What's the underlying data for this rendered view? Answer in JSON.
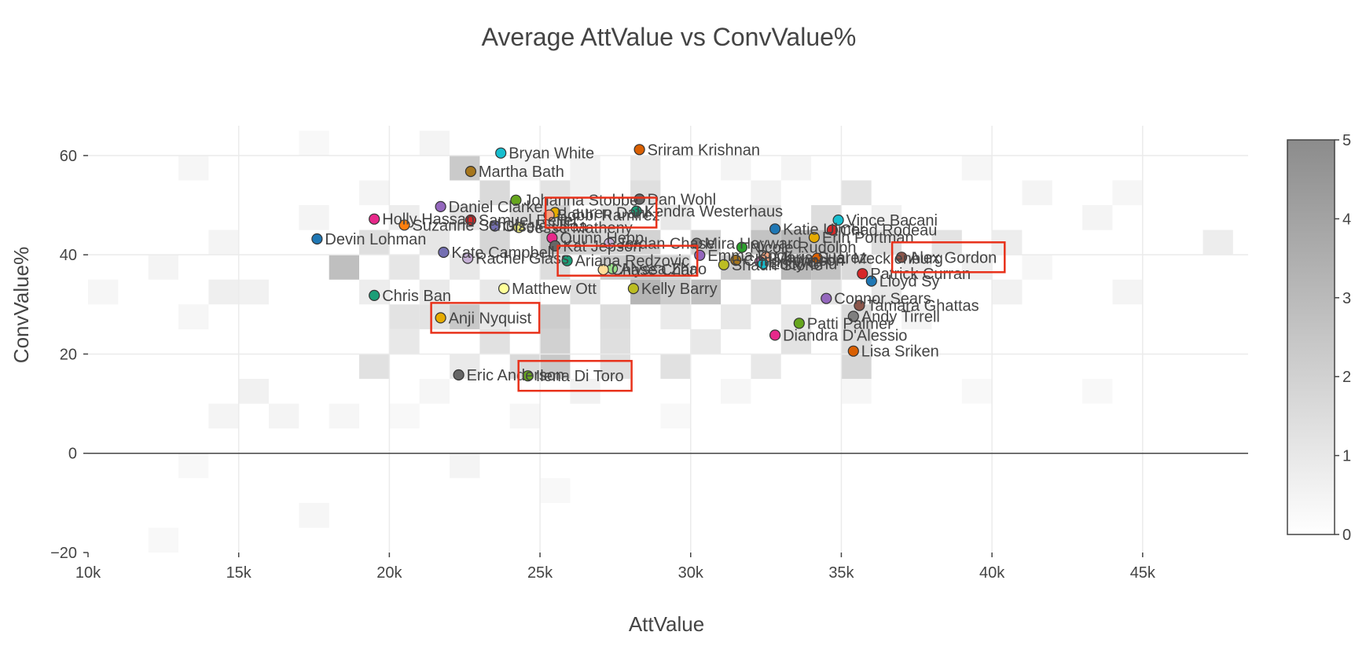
{
  "chart_data": {
    "type": "scatter",
    "title": "Average AttValue vs ConvValue%",
    "xlabel": "AttValue",
    "ylabel": "ConvValue%",
    "xlim": [
      10000,
      48500
    ],
    "ylim": [
      -20,
      66
    ],
    "x_ticks": [
      {
        "value": 10000,
        "label": "10k"
      },
      {
        "value": 15000,
        "label": "15k"
      },
      {
        "value": 20000,
        "label": "20k"
      },
      {
        "value": 25000,
        "label": "25k"
      },
      {
        "value": 30000,
        "label": "30k"
      },
      {
        "value": 35000,
        "label": "35k"
      },
      {
        "value": 40000,
        "label": "40k"
      },
      {
        "value": 45000,
        "label": "45k"
      }
    ],
    "y_ticks": [
      {
        "value": 60,
        "label": "60"
      },
      {
        "value": 40,
        "label": "40"
      },
      {
        "value": 20,
        "label": "20"
      },
      {
        "value": 0,
        "label": "0"
      },
      {
        "value": -20,
        "label": "−20"
      }
    ],
    "colorbar": {
      "min": 0,
      "max": 5,
      "ticks": [
        "0",
        "1",
        "2",
        "3",
        "4",
        "5"
      ],
      "low_color": "#ffffff",
      "high_color": "#8c8c8c"
    },
    "heatmap": {
      "x_start": 10000,
      "x_bin": 1000,
      "y_start": -20,
      "y_bin": 5,
      "cells": [
        [
          12,
          -20,
          0.3
        ],
        [
          17,
          -15,
          0.4
        ],
        [
          13,
          -5,
          0.3
        ],
        [
          22,
          -5,
          0.5
        ],
        [
          25,
          -10,
          0.3
        ],
        [
          14,
          5,
          0.5
        ],
        [
          16,
          5,
          0.5
        ],
        [
          18,
          5,
          0.4
        ],
        [
          20,
          5,
          0.3
        ],
        [
          24,
          5,
          0.4
        ],
        [
          29,
          5,
          0.3
        ],
        [
          15,
          10,
          0.6
        ],
        [
          21,
          10,
          0.4
        ],
        [
          26,
          10,
          0.6
        ],
        [
          31,
          10,
          0.4
        ],
        [
          35,
          10,
          0.4
        ],
        [
          39,
          10,
          0.3
        ],
        [
          43,
          10,
          0.3
        ],
        [
          19,
          15,
          1.3
        ],
        [
          22,
          15,
          0.9
        ],
        [
          24,
          15,
          1.6
        ],
        [
          25,
          15,
          2.4
        ],
        [
          27,
          15,
          1.4
        ],
        [
          29,
          15,
          1.3
        ],
        [
          32,
          15,
          1.0
        ],
        [
          35,
          15,
          1.8
        ],
        [
          20,
          20,
          1.0
        ],
        [
          23,
          20,
          1.3
        ],
        [
          25,
          20,
          2.0
        ],
        [
          27,
          20,
          1.4
        ],
        [
          30,
          20,
          1.0
        ],
        [
          33,
          20,
          1.2
        ],
        [
          35,
          20,
          1.5
        ],
        [
          13,
          25,
          0.4
        ],
        [
          20,
          25,
          1.2
        ],
        [
          21,
          25,
          1.2
        ],
        [
          22,
          25,
          2.4
        ],
        [
          23,
          25,
          1.0
        ],
        [
          25,
          25,
          2.2
        ],
        [
          27,
          25,
          1.5
        ],
        [
          29,
          25,
          0.9
        ],
        [
          31,
          25,
          1.0
        ],
        [
          33,
          25,
          1.0
        ],
        [
          35,
          25,
          1.6
        ],
        [
          37,
          25,
          0.5
        ],
        [
          10,
          30,
          0.4
        ],
        [
          14,
          30,
          0.7
        ],
        [
          15,
          30,
          0.6
        ],
        [
          19,
          30,
          0.8
        ],
        [
          21,
          30,
          0.9
        ],
        [
          23,
          30,
          1.0
        ],
        [
          26,
          30,
          1.4
        ],
        [
          28,
          30,
          3.2
        ],
        [
          29,
          30,
          2.2
        ],
        [
          30,
          30,
          2.8
        ],
        [
          32,
          30,
          1.5
        ],
        [
          34,
          30,
          1.2
        ],
        [
          36,
          30,
          1.0
        ],
        [
          40,
          30,
          0.6
        ],
        [
          44,
          30,
          0.5
        ],
        [
          12,
          35,
          0.5
        ],
        [
          18,
          35,
          2.8
        ],
        [
          20,
          35,
          1.1
        ],
        [
          22,
          35,
          1.0
        ],
        [
          25,
          35,
          1.5
        ],
        [
          27,
          35,
          2.2
        ],
        [
          28,
          35,
          2.4
        ],
        [
          29,
          35,
          1.8
        ],
        [
          31,
          35,
          2.2
        ],
        [
          33,
          35,
          3.0
        ],
        [
          34,
          35,
          2.6
        ],
        [
          35,
          35,
          1.6
        ],
        [
          37,
          35,
          0.9
        ],
        [
          39,
          35,
          0.7
        ],
        [
          41,
          35,
          0.4
        ],
        [
          14,
          40,
          0.5
        ],
        [
          19,
          40,
          1.4
        ],
        [
          21,
          40,
          1.1
        ],
        [
          23,
          40,
          1.8
        ],
        [
          25,
          40,
          2.6
        ],
        [
          26,
          40,
          2.0
        ],
        [
          27,
          40,
          1.8
        ],
        [
          28,
          40,
          1.9
        ],
        [
          30,
          40,
          2.0
        ],
        [
          32,
          40,
          2.6
        ],
        [
          33,
          40,
          3.1
        ],
        [
          34,
          40,
          2.8
        ],
        [
          36,
          40,
          1.5
        ],
        [
          38,
          40,
          1.2
        ],
        [
          40,
          40,
          0.8
        ],
        [
          47,
          40,
          0.8
        ],
        [
          17,
          45,
          0.5
        ],
        [
          20,
          45,
          0.8
        ],
        [
          22,
          45,
          1.2
        ],
        [
          24,
          45,
          1.6
        ],
        [
          25,
          45,
          2.0
        ],
        [
          27,
          45,
          1.2
        ],
        [
          29,
          45,
          1.0
        ],
        [
          32,
          45,
          1.4
        ],
        [
          34,
          45,
          1.5
        ],
        [
          36,
          45,
          0.6
        ],
        [
          43,
          45,
          0.5
        ],
        [
          19,
          50,
          0.5
        ],
        [
          23,
          50,
          1.6
        ],
        [
          25,
          50,
          1.2
        ],
        [
          26,
          50,
          0.6
        ],
        [
          28,
          50,
          1.4
        ],
        [
          32,
          50,
          0.6
        ],
        [
          35,
          50,
          1.2
        ],
        [
          41,
          50,
          0.5
        ],
        [
          44,
          50,
          0.4
        ],
        [
          13,
          55,
          0.4
        ],
        [
          22,
          55,
          2.3
        ],
        [
          24,
          55,
          0.4
        ],
        [
          26,
          55,
          0.6
        ],
        [
          28,
          55,
          1.0
        ],
        [
          31,
          55,
          0.5
        ],
        [
          33,
          55,
          0.5
        ],
        [
          39,
          55,
          0.4
        ],
        [
          17,
          60,
          0.3
        ],
        [
          21,
          60,
          0.5
        ]
      ]
    },
    "points": [
      {
        "name": "Bryan White",
        "x": 23700,
        "y": 60.5,
        "color": "#17becf"
      },
      {
        "name": "Sriram Krishnan",
        "x": 28300,
        "y": 61.2,
        "color": "#d95f02"
      },
      {
        "name": "Martha Bath",
        "x": 22700,
        "y": 56.8,
        "color": "#a6761d"
      },
      {
        "name": "Johanna Stobbe",
        "x": 24200,
        "y": 51.0,
        "color": "#66a61e"
      },
      {
        "name": "Dan Wohl",
        "x": 28300,
        "y": 51.2,
        "color": "#666666"
      },
      {
        "name": "Daniel Clarke",
        "x": 21700,
        "y": 49.7,
        "color": "#9467bd"
      },
      {
        "name": "Lauren Dahl",
        "x": 25500,
        "y": 48.5,
        "color": "#e6ab02"
      },
      {
        "name": "Bobbi Ramirez",
        "x": 25300,
        "y": 48.0,
        "color": "#f4a582"
      },
      {
        "name": "Kendra Westerhaus",
        "x": 28200,
        "y": 48.8,
        "color": "#1b9e77"
      },
      {
        "name": "Holly Hassan",
        "x": 19500,
        "y": 47.2,
        "color": "#e7298a"
      },
      {
        "name": "Samuel Reiter",
        "x": 22700,
        "y": 47.0,
        "color": "#d62728"
      },
      {
        "name": "Suzanne Schulz",
        "x": 20500,
        "y": 46.0,
        "color": "#ff7f0e"
      },
      {
        "name": "Gisele Ulloa",
        "x": 23500,
        "y": 45.8,
        "color": "#7570b3"
      },
      {
        "name": "Jesse Matheny",
        "x": 24300,
        "y": 45.5,
        "color": "#e6e67a"
      },
      {
        "name": "Vince Bacani",
        "x": 34900,
        "y": 47.0,
        "color": "#17becf"
      },
      {
        "name": "Katie Ulmer",
        "x": 32800,
        "y": 45.2,
        "color": "#1f77b4"
      },
      {
        "name": "Chad Rodeau",
        "x": 34700,
        "y": 45.0,
        "color": "#d62728"
      },
      {
        "name": "Devin Lohman",
        "x": 17600,
        "y": 43.2,
        "color": "#1f77b4"
      },
      {
        "name": "Quinn Hepp",
        "x": 25400,
        "y": 43.4,
        "color": "#e7298a"
      },
      {
        "name": "Jordan Chase",
        "x": 27300,
        "y": 42.3,
        "color": "#c5b0d5"
      },
      {
        "name": "Mira Hayward",
        "x": 30200,
        "y": 42.3,
        "color": "#7f7f7f"
      },
      {
        "name": "Erin Portman",
        "x": 34100,
        "y": 43.5,
        "color": "#e6ab02"
      },
      {
        "name": "Kat Jepson",
        "x": 25500,
        "y": 41.8,
        "color": "#666666"
      },
      {
        "name": "Nicole Rudolph",
        "x": 31700,
        "y": 41.5,
        "color": "#2ca02c"
      },
      {
        "name": "Kate Campbell",
        "x": 21800,
        "y": 40.5,
        "color": "#7570b3"
      },
      {
        "name": "Emma Bock",
        "x": 30300,
        "y": 39.9,
        "color": "#9467bd"
      },
      {
        "name": "Rachel Glass",
        "x": 22600,
        "y": 39.3,
        "color": "#c5b0d5"
      },
      {
        "name": "Ariana Redzovic",
        "x": 25900,
        "y": 38.8,
        "color": "#1b9e77"
      },
      {
        "name": "Chris Johnson",
        "x": 31500,
        "y": 38.9,
        "color": "#a6761d"
      },
      {
        "name": "Maria Suarez",
        "x": 32500,
        "y": 39.5,
        "color": "#f4a582"
      },
      {
        "name": "Hal Mecklenburg",
        "x": 34200,
        "y": 39.3,
        "color": "#d95f02"
      },
      {
        "name": "Lin Wu",
        "x": 32300,
        "y": 38.6,
        "color": "#e377c2"
      },
      {
        "name": "Alex Gordon",
        "x": 37000,
        "y": 39.5,
        "color": "#8c564b"
      },
      {
        "name": "Shaun Stone",
        "x": 31100,
        "y": 38.0,
        "color": "#bcbd22"
      },
      {
        "name": "Lucy Chu",
        "x": 32400,
        "y": 38.2,
        "color": "#17becf"
      },
      {
        "name": "Alyssa Zhao",
        "x": 27400,
        "y": 37.2,
        "color": "#98df8a"
      },
      {
        "name": "Chase Chan",
        "x": 27100,
        "y": 37.0,
        "color": "#ffdd99"
      },
      {
        "name": "Patrick Curran",
        "x": 35700,
        "y": 36.2,
        "color": "#d62728"
      },
      {
        "name": "Lloyd Sy",
        "x": 36000,
        "y": 34.7,
        "color": "#1f77b4"
      },
      {
        "name": "Matthew Ott",
        "x": 23800,
        "y": 33.2,
        "color": "#ffff99"
      },
      {
        "name": "Kelly Barry",
        "x": 28100,
        "y": 33.2,
        "color": "#bcbd22"
      },
      {
        "name": "Chris Ban",
        "x": 19500,
        "y": 31.8,
        "color": "#1b9e77"
      },
      {
        "name": "Connor Sears",
        "x": 34500,
        "y": 31.2,
        "color": "#9467bd"
      },
      {
        "name": "Tamara Ghattas",
        "x": 35600,
        "y": 29.8,
        "color": "#8c564b"
      },
      {
        "name": "Andy Tirrell",
        "x": 35400,
        "y": 27.6,
        "color": "#7f7f7f"
      },
      {
        "name": "Anji Nyquist",
        "x": 21700,
        "y": 27.3,
        "color": "#e6ab02"
      },
      {
        "name": "Patti Palmer",
        "x": 33600,
        "y": 26.2,
        "color": "#66a61e"
      },
      {
        "name": "Diandra D'Alessio",
        "x": 32800,
        "y": 23.8,
        "color": "#e7298a"
      },
      {
        "name": "Lisa Sriken",
        "x": 35400,
        "y": 20.6,
        "color": "#d95f02"
      },
      {
        "name": "Eric Anderson",
        "x": 22300,
        "y": 15.8,
        "color": "#666666"
      },
      {
        "name": "Ilena Di Toro",
        "x": 24600,
        "y": 15.6,
        "color": "#66a61e"
      }
    ],
    "highlighted": [
      "Lauren Dahl",
      "Ariana Redzovic",
      "Alex Gordon",
      "Anji Nyquist",
      "Ilena Di Toro"
    ],
    "highlight_color": "#e8311a",
    "grid": true,
    "zero_line": true
  }
}
